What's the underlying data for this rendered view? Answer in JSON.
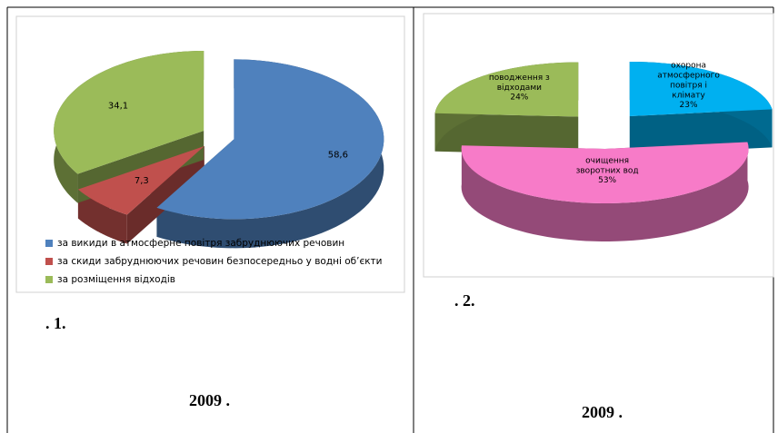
{
  "chart_data": [
    {
      "type": "pie",
      "categories": [
        "за викиди в атмосферне повітря забруднюючих речовин",
        "за скиди забруднюючих речовин безпосередньо у водні об’єкти",
        "за розміщення відходів"
      ],
      "values": [
        58.6,
        7.3,
        34.1
      ],
      "value_labels": [
        "58,6",
        "7,3",
        "34,1"
      ],
      "colors": [
        "#4f81bd",
        "#c0504d",
        "#9bbb59"
      ],
      "legend": "bottom"
    },
    {
      "type": "pie",
      "categories": [
        "охорона атмосферного повітря і клімату",
        "очищення зворотних вод",
        "поводження з відходами"
      ],
      "values": [
        23,
        53,
        24
      ],
      "value_labels": [
        "23%",
        "53%",
        "24%"
      ],
      "colors": [
        "#00b0f0",
        "#f77bc8",
        "#9bbb59"
      ]
    }
  ],
  "captions": [
    ". 1.",
    "2009  .",
    ". 2.",
    "2009  ."
  ]
}
